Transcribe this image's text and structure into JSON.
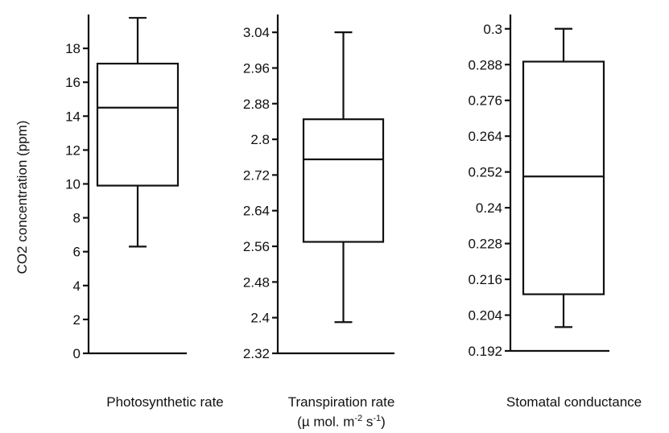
{
  "chart_data": [
    {
      "type": "box",
      "ylabel": "CO2 concentration (ppm)",
      "xlabel": "Photosynthetic rate",
      "ylim": [
        0,
        20
      ],
      "yticks": [
        0,
        2,
        4,
        6,
        8,
        10,
        12,
        14,
        16,
        18
      ],
      "ytick_labels": [
        "0",
        "2",
        "4",
        "6",
        "8",
        "10",
        "12",
        "14",
        "16",
        "18"
      ],
      "box": {
        "whisker_low": 6.3,
        "q1": 9.9,
        "median": 14.5,
        "q3": 17.1,
        "whisker_high": 19.8
      }
    },
    {
      "type": "box",
      "ylabel": "",
      "xlabel": "Transpiration rate",
      "xlabel_line2": "(µ mol. m",
      "xlabel_sup1": "-2",
      "xlabel_mid": " s",
      "xlabel_sup2": "-1",
      "xlabel_end": ")",
      "ylim": [
        2.32,
        3.08
      ],
      "yticks": [
        2.32,
        2.4,
        2.48,
        2.56,
        2.64,
        2.72,
        2.8,
        2.88,
        2.96,
        3.04
      ],
      "ytick_labels": [
        "2.32",
        "2.4",
        "2.48",
        "2.56",
        "2.64",
        "2.72",
        "2.8",
        "2.88",
        "2.96",
        "3.04"
      ],
      "box": {
        "whisker_low": 2.39,
        "q1": 2.57,
        "median": 2.755,
        "q3": 2.845,
        "whisker_high": 3.04
      }
    },
    {
      "type": "box",
      "ylabel": "",
      "xlabel": "Stomatal conductance",
      "ylim": [
        0.192,
        0.3048
      ],
      "yticks": [
        0.192,
        0.204,
        0.216,
        0.228,
        0.24,
        0.252,
        0.264,
        0.276,
        0.288,
        0.3
      ],
      "ytick_labels": [
        "0.192",
        "0.204",
        "0.216",
        "0.228",
        "0.24",
        "0.252",
        "0.264",
        "0.276",
        "0.288",
        "0.3"
      ],
      "box": {
        "whisker_low": 0.2,
        "q1": 0.211,
        "median": 0.2505,
        "q3": 0.289,
        "whisker_high": 0.3
      }
    }
  ]
}
